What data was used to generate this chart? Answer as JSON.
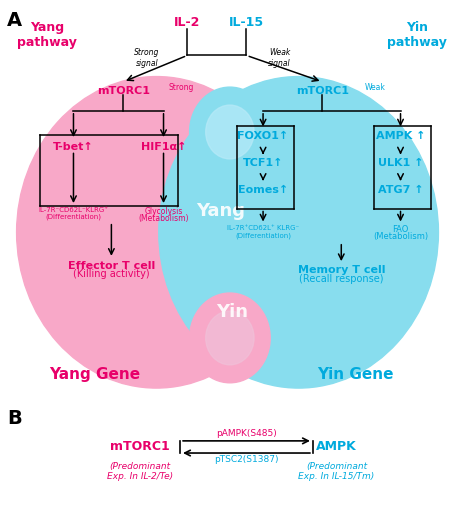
{
  "fig_width": 4.74,
  "fig_height": 5.28,
  "dpi": 100,
  "bg_color": "#ffffff",
  "yang_color": "#e8006a",
  "yin_color": "#00aadd",
  "black": "#000000",
  "pink_light": "#f8a8c8",
  "cyan_light": "#88ddee",
  "pink_eye": "#f0c0d8",
  "cyan_eye": "#b8eaf8",
  "yang_pathway": "Yang\npathway",
  "yin_pathway": "Yin\npathway",
  "il2": "IL-2",
  "il15": "IL-15",
  "strong_signal": "Strong\nsignal",
  "weak_signal": "Weak\nsignal",
  "mtorc1_strong": "mTORC1",
  "mtorc1_strong_sup": "Strong",
  "mtorc1_weak": "mTORC1",
  "mtorc1_weak_sup": "Weak",
  "tbet": "T-bet↑",
  "hif1a": "HIF1α↑",
  "foxo1": "FOXO1↑",
  "tcf1": "TCF1↑",
  "eomes": "Eomes↑",
  "ampk": "AMPK ↑",
  "ulk1": "ULK1 ↑",
  "atg7": "ATG7 ↑",
  "il7r_yang": "IL-7R⁻CD62L⁻KLRG⁺",
  "diff_yang": "(Differentiation)",
  "glycolysis": "Glycolysis",
  "metab_yang": "(Metabolism)",
  "il7r_yin": "IL-7R⁺CD62L⁺ KLRG⁻",
  "diff_yin": "(Differentiation)",
  "fao": "FAO",
  "metab_yin": "(Metabolism)",
  "effector": "Effector T cell",
  "killing": "(Killing activity)",
  "memory": "Memory T cell",
  "recall": "(Recall response)",
  "yang_text": "Yang",
  "yin_text": "Yin",
  "yang_gene": "Yang Gene",
  "yin_gene": "Yin Gene",
  "mtorc1_b": "mTORC1",
  "ampk_b": "AMPK",
  "pampk": "pAMPK(S485)",
  "ptsc2": "pTSC2(S1387)",
  "pred_yang": "(Predominant\nExp. In IL-2/Te)",
  "pred_yin": "(Predominant\nExp. In IL-15/Tm)"
}
